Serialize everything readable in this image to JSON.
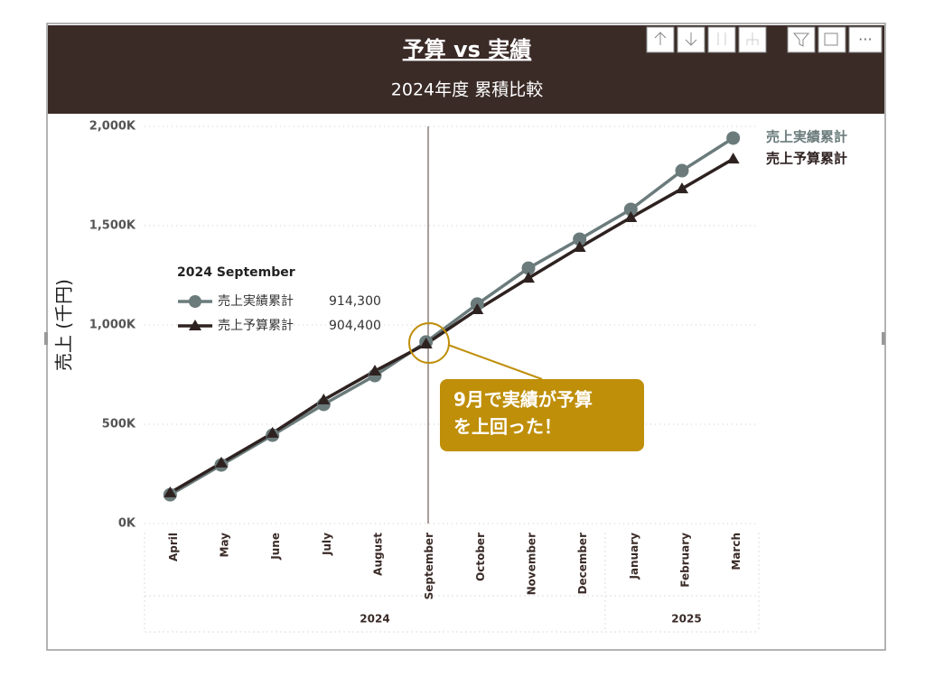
{
  "chart_data": {
    "type": "line",
    "title": "予算 vs 実績",
    "subtitle": "2024年度 累積比較",
    "y_label": "売上 (千円)",
    "categories": [
      "April",
      "May",
      "June",
      "July",
      "August",
      "September",
      "October",
      "November",
      "December",
      "January",
      "February",
      "March"
    ],
    "year_labels": [
      "2024",
      "2025"
    ],
    "series": [
      {
        "name": "売上実績累計",
        "color": "#6b7b7b",
        "marker": "circle",
        "values": [
          145000,
          295000,
          445000,
          600000,
          745000,
          914300,
          1105000,
          1286000,
          1432000,
          1582000,
          1777000,
          1941000
        ]
      },
      {
        "name": "売上予算累計",
        "color": "#2e2220",
        "marker": "triangle",
        "values": [
          155000,
          305000,
          455000,
          623000,
          768000,
          904400,
          1077000,
          1236000,
          1391000,
          1541000,
          1686000,
          1836000
        ]
      }
    ],
    "ylim": [
      0,
      2000000
    ],
    "yticks": [
      {
        "value": 0,
        "label": "0K"
      },
      {
        "value": 500000,
        "label": "500K"
      },
      {
        "value": 1000000,
        "label": "1,000K"
      },
      {
        "value": 1500000,
        "label": "1,500K"
      },
      {
        "value": 2000000,
        "label": "2,000K"
      }
    ],
    "grid": true,
    "tooltip": {
      "title": "2024 September",
      "value_labels": [
        "914,300",
        "904,400"
      ]
    },
    "annotation": {
      "lines": [
        "9月で実績が予算",
        "を上回った！"
      ],
      "color": "#bf8f0a"
    }
  }
}
